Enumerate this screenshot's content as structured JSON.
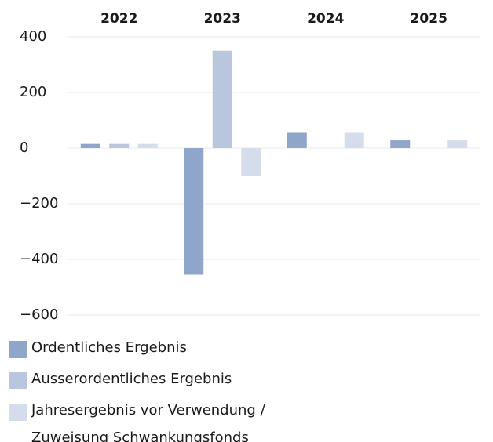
{
  "chart_data": {
    "type": "bar",
    "categories": [
      "2022",
      "2023",
      "2024",
      "2025"
    ],
    "series": [
      {
        "name": "Ordentliches Ergebnis",
        "color": "#8fa5c9",
        "values": [
          15,
          -455,
          55,
          28
        ]
      },
      {
        "name": "Ausserordentliches Ergebnis",
        "color": "#b9c6de",
        "values": [
          15,
          350,
          0,
          0
        ]
      },
      {
        "name": "Jahresergebnis vor Verwendung / Zuweisung Schwankungsfonds",
        "color": "#d5ddec",
        "values": [
          15,
          -100,
          55,
          28
        ]
      }
    ],
    "ylim": [
      -600,
      400
    ],
    "yticks": [
      {
        "value": -600,
        "label": "−600"
      },
      {
        "value": -400,
        "label": "−400"
      },
      {
        "value": -200,
        "label": "−200"
      },
      0,
      200,
      400
    ],
    "grid": true
  }
}
